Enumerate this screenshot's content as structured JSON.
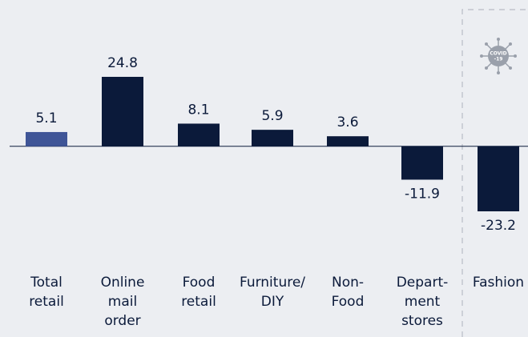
{
  "chart_data": {
    "type": "bar",
    "categories": [
      [
        "Total",
        "retail"
      ],
      [
        "Online",
        "mail",
        "order"
      ],
      [
        "Food",
        "retail"
      ],
      [
        "Furniture/",
        "DIY"
      ],
      [
        "Non-",
        "Food"
      ],
      [
        "Depart-",
        "ment",
        "stores"
      ],
      [
        "Fashion"
      ]
    ],
    "values": [
      5.1,
      24.8,
      8.1,
      5.9,
      3.6,
      -11.9,
      -23.2
    ],
    "colors": [
      "#3f5597",
      "#0b1a3a",
      "#0b1a3a",
      "#0b1a3a",
      "#0b1a3a",
      "#0b1a3a",
      "#0b1a3a"
    ],
    "annotation": [
      "COVID",
      "-19"
    ]
  }
}
